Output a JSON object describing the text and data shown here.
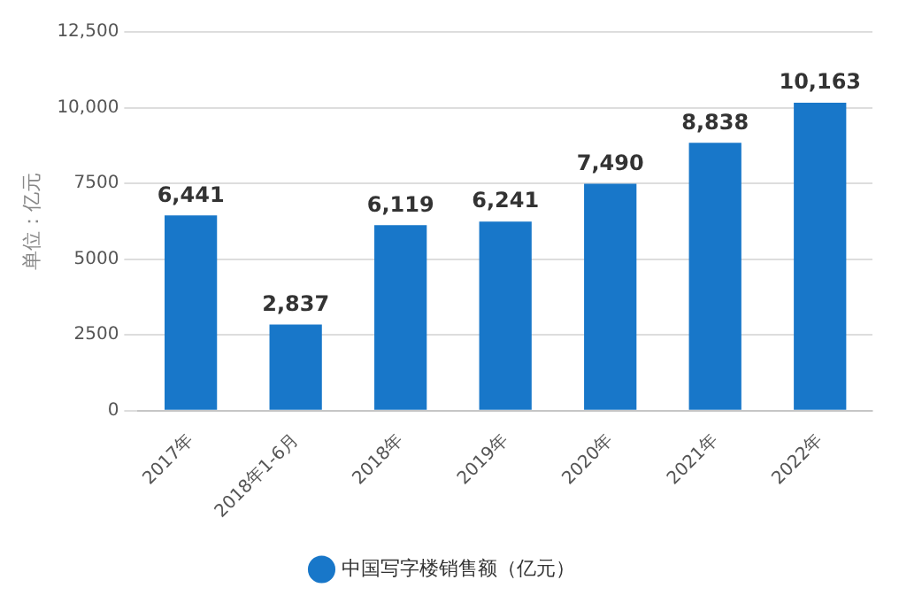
{
  "chart_data": {
    "type": "bar",
    "ylabel": "单位：亿元",
    "categories": [
      "2017年",
      "2018年1-6月",
      "2018年",
      "2019年",
      "2020年",
      "2021年",
      "2022年"
    ],
    "series": [
      {
        "name": "中国写字楼销售额（亿元）",
        "color": "#1877c9",
        "values": [
          6441,
          2837,
          6119,
          6241,
          7490,
          8838,
          10163
        ],
        "value_labels": [
          "6,441",
          "2,837",
          "6,119",
          "6,241",
          "7,490",
          "8,838",
          "10,163"
        ]
      }
    ],
    "ylim": [
      0,
      12500
    ],
    "yticks": [
      0,
      2500,
      5000,
      7500,
      {
        "value": 10000,
        "label": "10,000"
      },
      {
        "value": 12500,
        "label": "12,500"
      }
    ],
    "grid": "y",
    "legend": "bottom"
  }
}
